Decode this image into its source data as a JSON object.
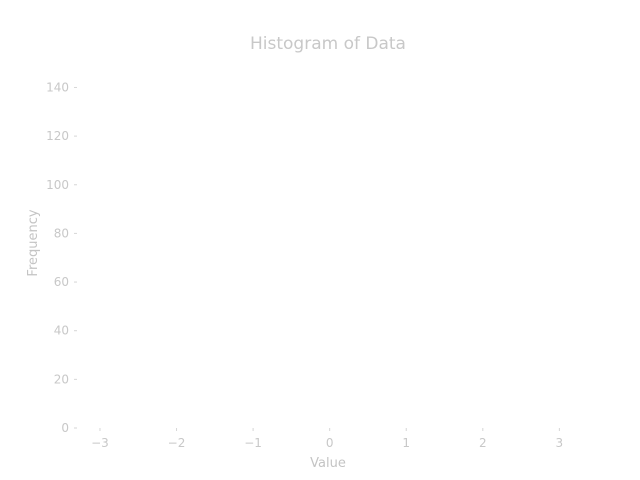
{
  "chart_data": {
    "type": "bar",
    "title": "Histogram of Data",
    "xlabel": "Value",
    "ylabel": "Frequency",
    "xlim": [
      -3.3,
      3.4
    ],
    "ylim": [
      0,
      148
    ],
    "xticks": [
      -3,
      -2,
      -1,
      0,
      1,
      2,
      3
    ],
    "xtick_labels": [
      "−3",
      "−2",
      "−1",
      "0",
      "1",
      "2",
      "3"
    ],
    "yticks": [
      0,
      20,
      40,
      60,
      80,
      100,
      120,
      140
    ],
    "ytick_labels": [
      "0",
      "20",
      "40",
      "60",
      "80",
      "100",
      "120",
      "140"
    ],
    "grid": false,
    "legend": "none",
    "bins": [],
    "colors": {
      "text": "#c8c8c8",
      "tick": "#d6d6d6",
      "background": "#ffffff"
    }
  }
}
